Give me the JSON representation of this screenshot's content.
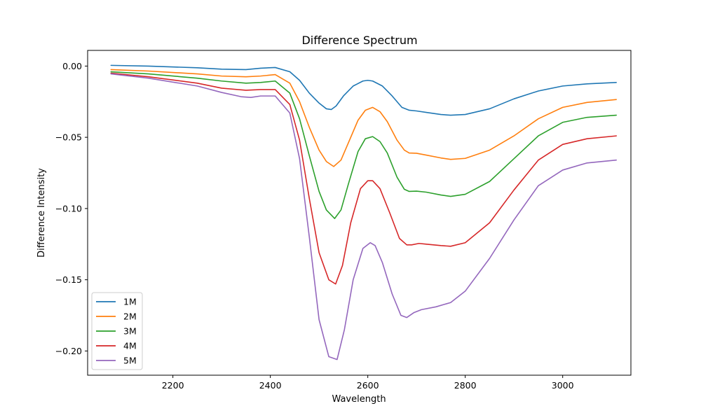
{
  "chart_data": {
    "type": "line",
    "title": "Difference Spectrum",
    "xlabel": "Wavelength",
    "ylabel": "Difference Intensity",
    "xlim": [
      2025,
      3140
    ],
    "ylim": [
      -0.217,
      0.011
    ],
    "xticks": [
      2200,
      2400,
      2600,
      2800,
      3000
    ],
    "xtick_labels": [
      "2200",
      "2400",
      "2600",
      "2800",
      "3000"
    ],
    "yticks": [
      0.0,
      -0.05,
      -0.1,
      -0.15,
      -0.2
    ],
    "ytick_labels": [
      "0.00",
      "−0.05",
      "−0.10",
      "−0.15",
      "−0.20"
    ],
    "grid": false,
    "legend": "lower-left",
    "series": [
      {
        "name": "1M",
        "color": "#1f77b4",
        "x": [
          2073,
          2150,
          2250,
          2300,
          2350,
          2380,
          2410,
          2440,
          2460,
          2480,
          2500,
          2515,
          2525,
          2535,
          2550,
          2570,
          2590,
          2600,
          2610,
          2630,
          2650,
          2670,
          2685,
          2700,
          2720,
          2750,
          2770,
          2800,
          2850,
          2900,
          2950,
          3000,
          3050,
          3110
        ],
        "y": [
          0.0005,
          0.0,
          -0.0012,
          -0.0022,
          -0.0025,
          -0.0015,
          -0.001,
          -0.004,
          -0.01,
          -0.019,
          -0.026,
          -0.03,
          -0.0305,
          -0.028,
          -0.021,
          -0.014,
          -0.0105,
          -0.01,
          -0.0105,
          -0.014,
          -0.021,
          -0.029,
          -0.031,
          -0.0315,
          -0.0325,
          -0.034,
          -0.0345,
          -0.034,
          -0.03,
          -0.023,
          -0.0175,
          -0.014,
          -0.0125,
          -0.0115
        ]
      },
      {
        "name": "2M",
        "color": "#ff7f0e",
        "x": [
          2073,
          2150,
          2250,
          2300,
          2350,
          2380,
          2410,
          2440,
          2460,
          2480,
          2500,
          2515,
          2530,
          2545,
          2560,
          2580,
          2595,
          2610,
          2625,
          2640,
          2660,
          2675,
          2685,
          2700,
          2720,
          2750,
          2770,
          2800,
          2850,
          2900,
          2950,
          3000,
          3050,
          3110
        ],
        "y": [
          -0.0025,
          -0.0035,
          -0.0055,
          -0.007,
          -0.0075,
          -0.007,
          -0.006,
          -0.012,
          -0.025,
          -0.043,
          -0.059,
          -0.067,
          -0.0705,
          -0.066,
          -0.054,
          -0.038,
          -0.031,
          -0.029,
          -0.032,
          -0.039,
          -0.052,
          -0.059,
          -0.061,
          -0.0612,
          -0.0625,
          -0.0645,
          -0.0655,
          -0.0648,
          -0.059,
          -0.049,
          -0.037,
          -0.029,
          -0.0255,
          -0.0235
        ]
      },
      {
        "name": "3M",
        "color": "#2ca02c",
        "x": [
          2073,
          2150,
          2250,
          2300,
          2350,
          2380,
          2410,
          2440,
          2460,
          2480,
          2500,
          2515,
          2532,
          2545,
          2560,
          2580,
          2595,
          2610,
          2625,
          2640,
          2660,
          2675,
          2685,
          2700,
          2720,
          2750,
          2770,
          2800,
          2850,
          2900,
          2950,
          3000,
          3050,
          3110
        ],
        "y": [
          -0.004,
          -0.0055,
          -0.0085,
          -0.0105,
          -0.012,
          -0.0115,
          -0.0105,
          -0.019,
          -0.037,
          -0.063,
          -0.088,
          -0.101,
          -0.107,
          -0.101,
          -0.083,
          -0.06,
          -0.051,
          -0.0495,
          -0.053,
          -0.061,
          -0.078,
          -0.0865,
          -0.088,
          -0.0878,
          -0.0885,
          -0.0905,
          -0.0915,
          -0.09,
          -0.081,
          -0.065,
          -0.049,
          -0.0395,
          -0.036,
          -0.0345
        ]
      },
      {
        "name": "4M",
        "color": "#d62728",
        "x": [
          2073,
          2150,
          2250,
          2300,
          2350,
          2380,
          2410,
          2440,
          2460,
          2480,
          2500,
          2520,
          2534,
          2548,
          2565,
          2585,
          2600,
          2610,
          2625,
          2645,
          2665,
          2680,
          2690,
          2705,
          2720,
          2750,
          2770,
          2800,
          2850,
          2900,
          2950,
          3000,
          3050,
          3110
        ],
        "y": [
          -0.005,
          -0.0075,
          -0.012,
          -0.0155,
          -0.017,
          -0.0165,
          -0.0165,
          -0.027,
          -0.052,
          -0.093,
          -0.131,
          -0.15,
          -0.153,
          -0.14,
          -0.11,
          -0.086,
          -0.0805,
          -0.0805,
          -0.086,
          -0.103,
          -0.121,
          -0.1255,
          -0.1255,
          -0.1245,
          -0.125,
          -0.126,
          -0.1265,
          -0.124,
          -0.11,
          -0.087,
          -0.066,
          -0.055,
          -0.051,
          -0.049
        ]
      },
      {
        "name": "5M",
        "color": "#9467bd",
        "x": [
          2073,
          2150,
          2250,
          2300,
          2340,
          2360,
          2380,
          2410,
          2440,
          2460,
          2480,
          2500,
          2520,
          2537,
          2552,
          2570,
          2590,
          2605,
          2615,
          2630,
          2650,
          2668,
          2680,
          2695,
          2710,
          2740,
          2770,
          2800,
          2850,
          2900,
          2950,
          3000,
          3050,
          3110
        ],
        "y": [
          -0.0055,
          -0.0085,
          -0.014,
          -0.0185,
          -0.0215,
          -0.022,
          -0.021,
          -0.021,
          -0.033,
          -0.065,
          -0.12,
          -0.178,
          -0.204,
          -0.206,
          -0.185,
          -0.15,
          -0.128,
          -0.124,
          -0.126,
          -0.138,
          -0.16,
          -0.175,
          -0.1765,
          -0.173,
          -0.171,
          -0.169,
          -0.166,
          -0.158,
          -0.135,
          -0.108,
          -0.084,
          -0.073,
          -0.068,
          -0.066
        ]
      }
    ]
  }
}
